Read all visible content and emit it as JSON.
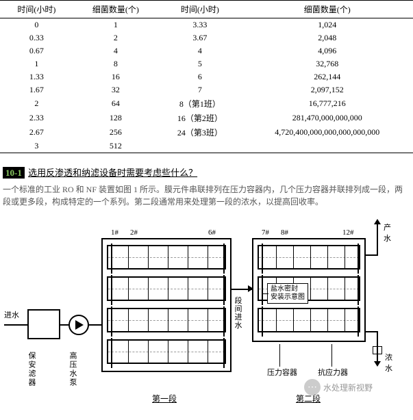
{
  "table": {
    "headers": [
      "时间(小时)",
      "细菌数量(个)",
      "时间(小时)",
      "细菌数量(个)"
    ],
    "rows": [
      [
        "0",
        "1",
        "3.33",
        "1,024"
      ],
      [
        "0.33",
        "2",
        "3.67",
        "2,048"
      ],
      [
        "0.67",
        "4",
        "4",
        "4,096"
      ],
      [
        "1",
        "8",
        "5",
        "32,768"
      ],
      [
        "1.33",
        "16",
        "6",
        "262,144"
      ],
      [
        "1.67",
        "32",
        "7",
        "2,097,152"
      ],
      [
        "2",
        "64",
        "8（第1班）",
        "16,777,216"
      ],
      [
        "2.33",
        "128",
        "16（第2班）",
        "281,470,000,000,000"
      ],
      [
        "2.67",
        "256",
        "24（第3班）",
        "4,720,400,000,000,000,000,000"
      ],
      [
        "3",
        "512",
        "",
        ""
      ]
    ]
  },
  "question": {
    "num": "10-1",
    "title": "选用反渗透和纳滤设备时需要考虑些什么？",
    "desc": "一个标准的工业 RO 和 NF 装置如图 1 所示。膜元件串联排列在压力容器内，几个压力容器并联排列成一段，两段或更多段，构成特定的一个系列。第二段通常用来处理第一段的浓水，以提高回收率。"
  },
  "diagram": {
    "in_water": "进水",
    "filter": "保安滤器",
    "pump": "高压水泵",
    "out_water": "产水",
    "conc_water": "浓水",
    "vessel_lbl": "压力容器",
    "resist_lbl": "抗应力器",
    "inter_stage": "段间进水",
    "seal_lbl1": "盐水密封",
    "seal_lbl2": "安装示意图",
    "stage1": "第一段",
    "stage2": "第二段",
    "s1_nums": [
      "1#",
      "2#",
      "6#"
    ],
    "s2_nums": [
      "7#",
      "8#",
      "12#"
    ],
    "watermark": "水处理新视野"
  }
}
